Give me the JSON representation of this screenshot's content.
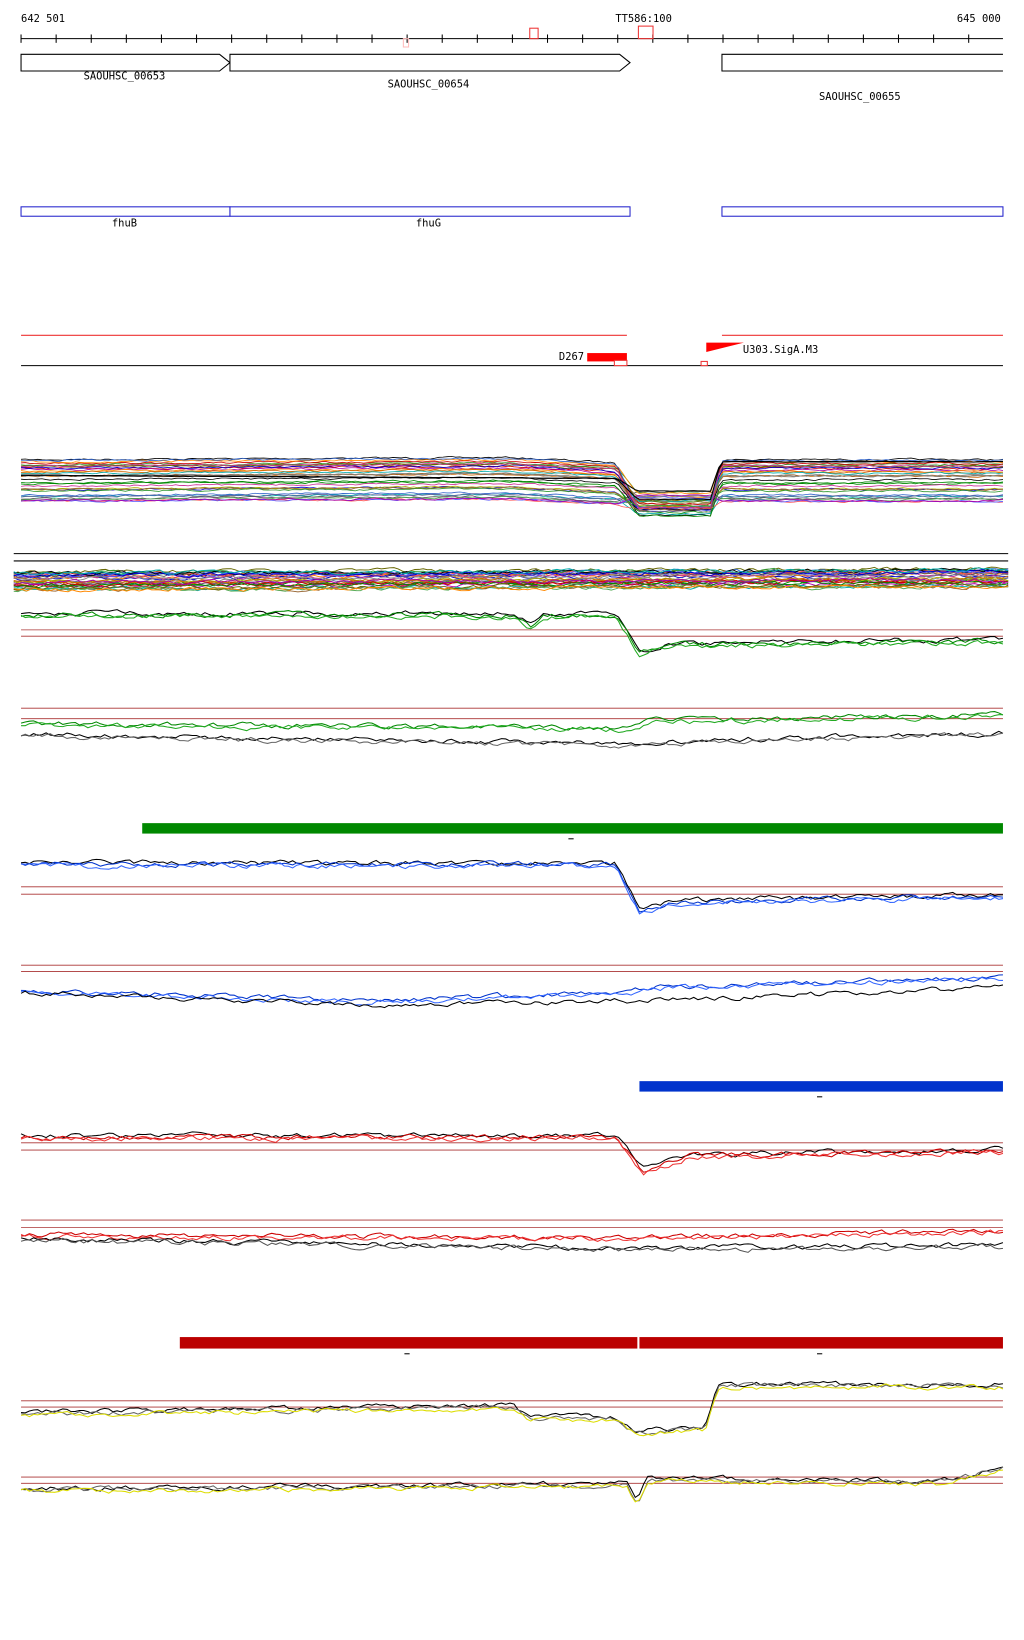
{
  "ruler": {
    "start": "642 501",
    "end": "645 000",
    "marker": "TT586:100"
  },
  "genes": [
    {
      "label": "SAOUHSC_00653"
    },
    {
      "label": "SAOUHSC_00654"
    },
    {
      "label": "SAOUHSC_00655"
    }
  ],
  "features": [
    {
      "label": "fhuB"
    },
    {
      "label": "fhuG"
    }
  ],
  "elements": [
    {
      "label": "D267"
    },
    {
      "label": "U303.SigA.M3"
    }
  ]
}
